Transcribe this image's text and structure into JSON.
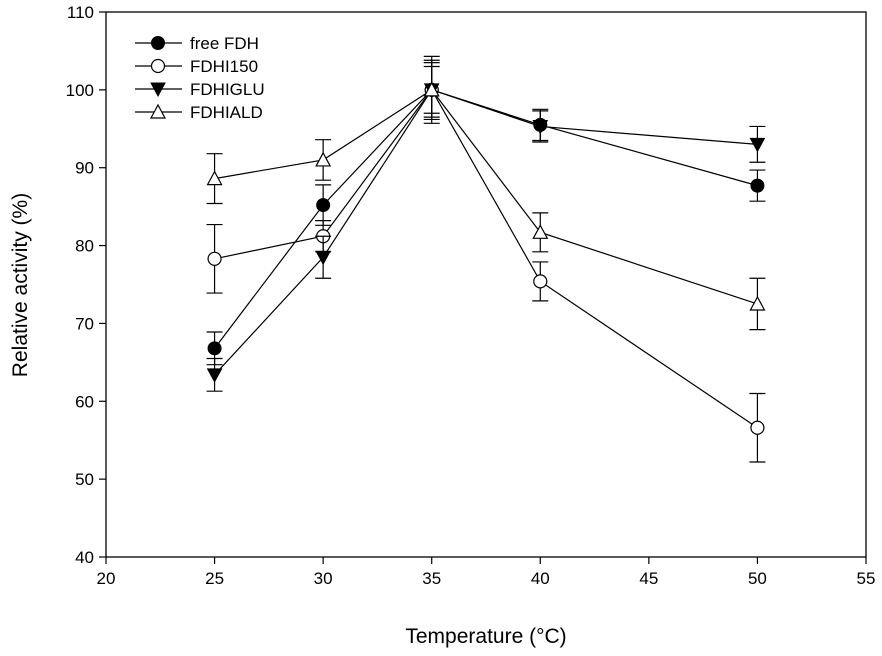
{
  "chart_data": {
    "type": "line",
    "xlabel": "Temperature (°C)",
    "xlabel_parts": {
      "pre": "Temperature (",
      "sup": "o",
      "post": "C)"
    },
    "ylabel": "Relative activity (%)",
    "xlim": [
      20,
      55
    ],
    "ylim": [
      40,
      110
    ],
    "xticks": [
      20,
      25,
      30,
      35,
      40,
      45,
      50,
      55
    ],
    "yticks": [
      40,
      50,
      60,
      70,
      80,
      90,
      100,
      110
    ],
    "grid": false,
    "legend_position": "top-left",
    "x": [
      25,
      30,
      35,
      40,
      50
    ],
    "series": [
      {
        "name": "free FDH",
        "marker": "filled-circle",
        "values": [
          66.8,
          85.2,
          100,
          95.5,
          87.7
        ],
        "errors": [
          2.1,
          2.6,
          4.3,
          2.0,
          2.0
        ]
      },
      {
        "name": "FDHI150",
        "marker": "open-circle",
        "values": [
          78.3,
          81.2,
          100,
          75.4,
          56.6
        ],
        "errors": [
          4.4,
          2.0,
          3.5,
          2.5,
          4.4
        ]
      },
      {
        "name": "FDHIGLU",
        "marker": "filled-triangle-down",
        "values": [
          63.4,
          78.5,
          100,
          95.3,
          93.0
        ],
        "errors": [
          2.1,
          2.7,
          3.0,
          2.0,
          2.3
        ]
      },
      {
        "name": "FDHIALD",
        "marker": "open-triangle-up",
        "values": [
          88.6,
          91.0,
          100,
          81.7,
          72.5
        ],
        "errors": [
          3.2,
          2.6,
          3.8,
          2.5,
          3.3
        ]
      }
    ]
  }
}
